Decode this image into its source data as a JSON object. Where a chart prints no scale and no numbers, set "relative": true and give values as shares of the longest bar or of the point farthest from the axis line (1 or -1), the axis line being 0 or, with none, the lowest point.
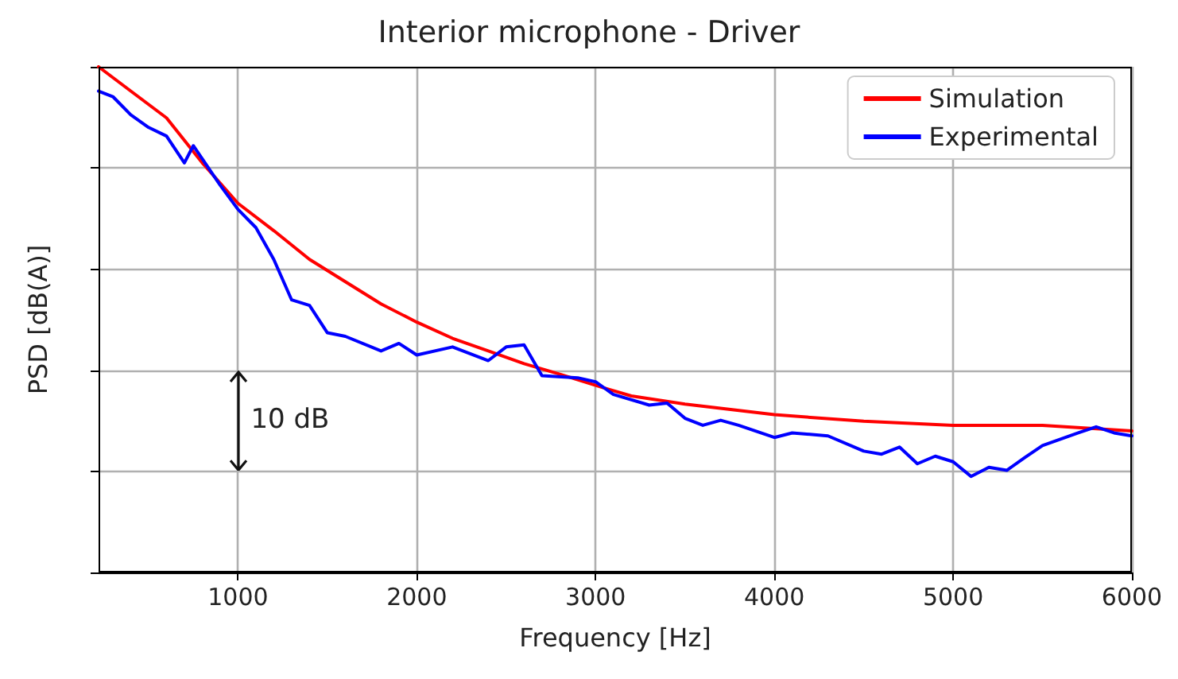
{
  "chart_data": {
    "type": "line",
    "title": "Interior microphone - Driver",
    "xlabel": "Frequency [Hz]",
    "ylabel": "PSD [dB(A)]",
    "xlim": [
      220,
      6000
    ],
    "xticks": [
      1000,
      2000,
      3000,
      4000,
      5000,
      6000
    ],
    "relative": true,
    "tick_labels": "x",
    "grid": true,
    "legend": "top right",
    "marker": "none",
    "line_style": "solid",
    "annotations": [
      "10 dB"
    ],
    "series": [
      {
        "name": "Simulation",
        "color": "#ff0000",
        "x": [
          220,
          400,
          600,
          800,
          1000,
          1200,
          1400,
          1600,
          1800,
          2000,
          2200,
          2400,
          2600,
          2800,
          3000,
          3200,
          3500,
          4000,
          4500,
          5000,
          5500,
          6000
        ],
        "values": [
          1,
          0.952,
          0.899,
          0.81,
          0.73,
          0.676,
          0.619,
          0.575,
          0.531,
          0.495,
          0.463,
          0.438,
          0.413,
          0.392,
          0.37,
          0.349,
          0.333,
          0.312,
          0.299,
          0.291,
          0.291,
          0.28
        ]
      },
      {
        "name": "Experimental",
        "color": "#0000ff",
        "x": [
          220,
          300,
          400,
          500,
          600,
          700,
          750,
          900,
          1000,
          1100,
          1200,
          1300,
          1400,
          1500,
          1600,
          1800,
          1900,
          2000,
          2200,
          2400,
          2500,
          2600,
          2700,
          2900,
          3000,
          3100,
          3300,
          3400,
          3500,
          3600,
          3700,
          3800,
          4000,
          4100,
          4300,
          4500,
          4600,
          4700,
          4800,
          4900,
          5000,
          5100,
          5200,
          5300,
          5400,
          5500,
          5700,
          5800,
          5900,
          6000
        ],
        "values": [
          0.952,
          0.941,
          0.905,
          0.88,
          0.863,
          0.81,
          0.844,
          0.766,
          0.718,
          0.682,
          0.619,
          0.539,
          0.528,
          0.474,
          0.467,
          0.438,
          0.453,
          0.43,
          0.446,
          0.419,
          0.446,
          0.45,
          0.389,
          0.385,
          0.377,
          0.352,
          0.331,
          0.335,
          0.305,
          0.291,
          0.301,
          0.291,
          0.267,
          0.276,
          0.27,
          0.24,
          0.234,
          0.248,
          0.215,
          0.23,
          0.219,
          0.19,
          0.208,
          0.202,
          0.227,
          0.251,
          0.276,
          0.288,
          0.276,
          0.27
        ]
      }
    ]
  }
}
